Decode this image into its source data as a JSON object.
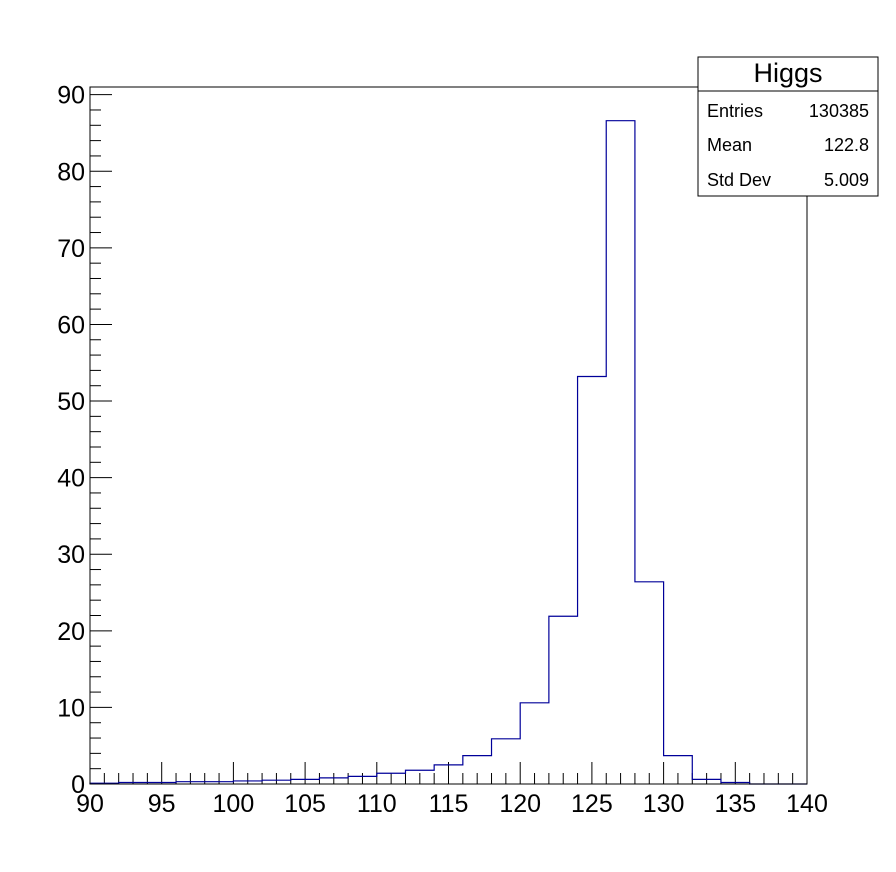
{
  "chart_data": {
    "type": "bar",
    "style": "step-histogram",
    "x": [
      90,
      92,
      94,
      96,
      98,
      100,
      102,
      104,
      106,
      108,
      110,
      112,
      114,
      116,
      118,
      120,
      122,
      124,
      126,
      128,
      130,
      132,
      134,
      136,
      138
    ],
    "bin_width": 2,
    "values": [
      0.1,
      0.2,
      0.2,
      0.3,
      0.3,
      0.4,
      0.5,
      0.6,
      0.8,
      1.0,
      1.4,
      1.8,
      2.5,
      3.7,
      5.9,
      10.6,
      21.9,
      53.2,
      86.6,
      26.4,
      3.7,
      0.6,
      0.2,
      0.0,
      0.0
    ],
    "xlim": [
      90,
      140
    ],
    "ylim": [
      0,
      91
    ],
    "x_ticks": [
      90,
      95,
      100,
      105,
      110,
      115,
      120,
      125,
      130,
      135,
      140
    ],
    "y_ticks": [
      0,
      10,
      20,
      30,
      40,
      50,
      60,
      70,
      80,
      90
    ],
    "line_color": "#000099",
    "grid": false
  },
  "stats_box": {
    "title": "Higgs",
    "rows": [
      {
        "label": "Entries",
        "value": "130385"
      },
      {
        "label": "Mean",
        "value": "122.8"
      },
      {
        "label": "Std Dev",
        "value": "5.009"
      }
    ]
  }
}
